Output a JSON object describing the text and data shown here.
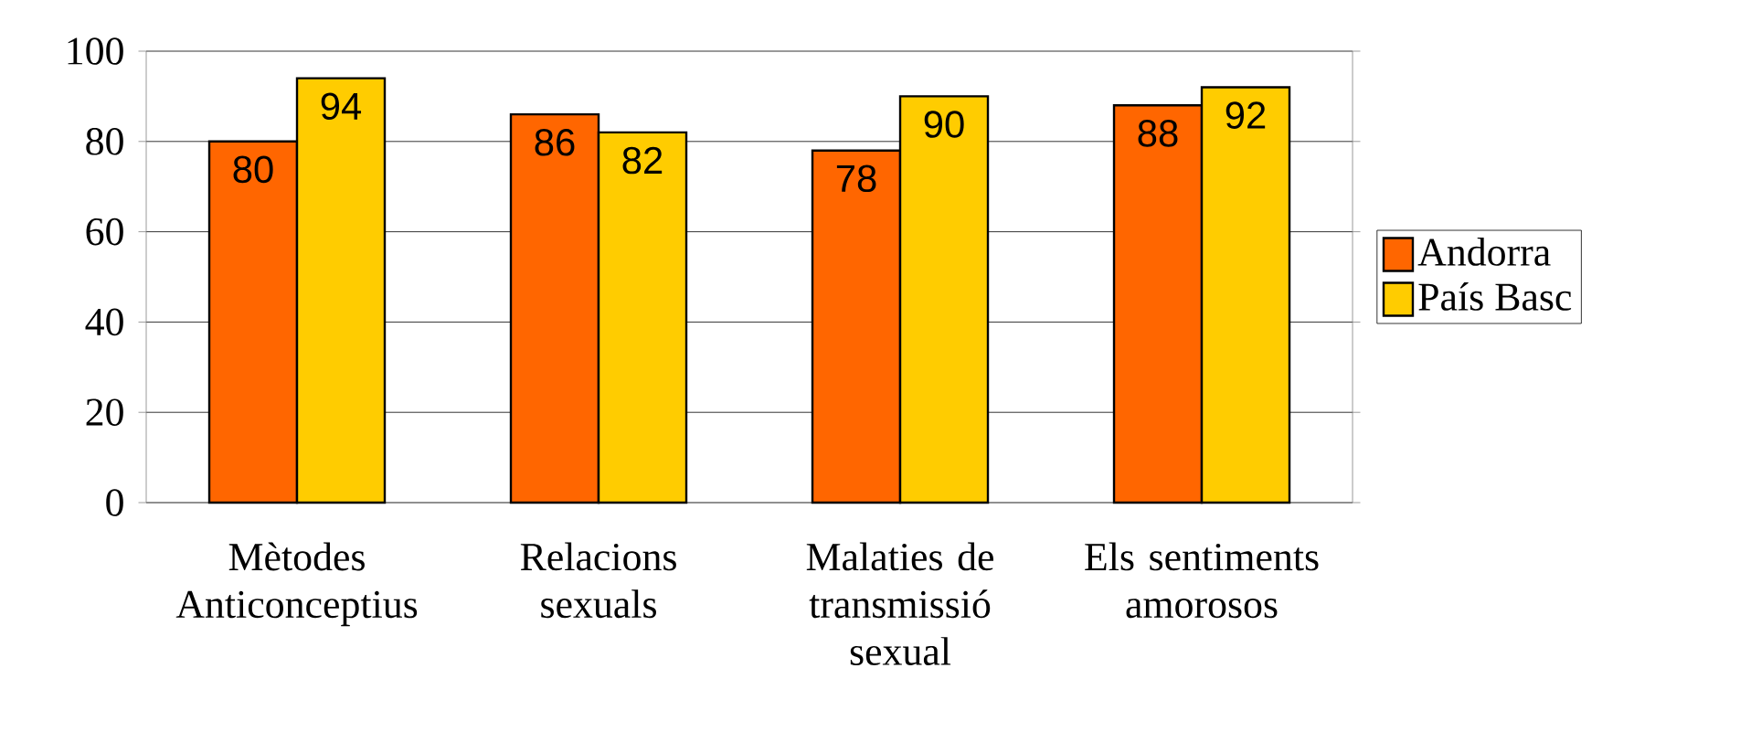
{
  "chart_data": {
    "type": "bar",
    "categories": [
      "Mètodes Anticonceptius",
      "Relacions sexuals",
      "Malaties de transmissió sexual",
      "Els sentiments amorosos"
    ],
    "series": [
      {
        "name": "Andorra",
        "color": "#ff6600",
        "values": [
          80,
          86,
          78,
          88
        ]
      },
      {
        "name": "País Basc",
        "color": "#ffcc00",
        "values": [
          94,
          82,
          90,
          92
        ]
      }
    ],
    "ylim": [
      0,
      100
    ],
    "yticks": [
      0,
      20,
      40,
      60,
      80,
      100
    ],
    "grid": "y",
    "legend": "right",
    "data_labels": true
  }
}
